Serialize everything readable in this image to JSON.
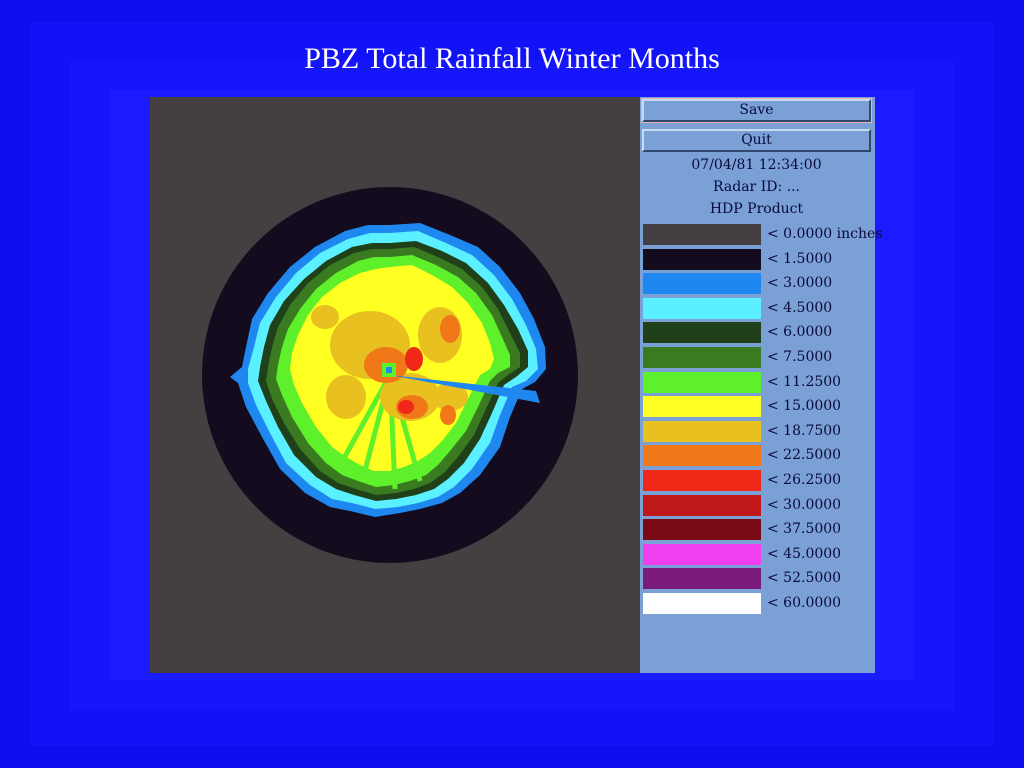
{
  "title": "PBZ Total Rainfall Winter Months",
  "controls": {
    "save_label": "Save",
    "quit_label": "Quit"
  },
  "info": {
    "datetime": "07/04/81  12:34:00",
    "radar_id": "Radar ID:  ...",
    "product": "HDP Product"
  },
  "legend": [
    {
      "label": "< 0.0000 inches",
      "color": "#463f42"
    },
    {
      "label": "< 1.5000",
      "color": "#140c1e"
    },
    {
      "label": "< 3.0000",
      "color": "#1e88f0"
    },
    {
      "label": "< 4.5000",
      "color": "#5af0ff"
    },
    {
      "label": "< 6.0000",
      "color": "#1f4018"
    },
    {
      "label": "< 7.5000",
      "color": "#3a7a20"
    },
    {
      "label": "< 11.2500",
      "color": "#5ef02a"
    },
    {
      "label": "< 15.0000",
      "color": "#ffff22"
    },
    {
      "label": "< 18.7500",
      "color": "#e8c020"
    },
    {
      "label": "< 22.5000",
      "color": "#f07818"
    },
    {
      "label": "< 26.2500",
      "color": "#f02818"
    },
    {
      "label": "< 30.0000",
      "color": "#c01818"
    },
    {
      "label": "< 37.5000",
      "color": "#7a0a14"
    },
    {
      "label": "< 45.0000",
      "color": "#f040f0"
    },
    {
      "label": "< 52.5000",
      "color": "#7a1a7a"
    },
    {
      "label": "< 60.0000",
      "color": "#ffffff"
    }
  ]
}
